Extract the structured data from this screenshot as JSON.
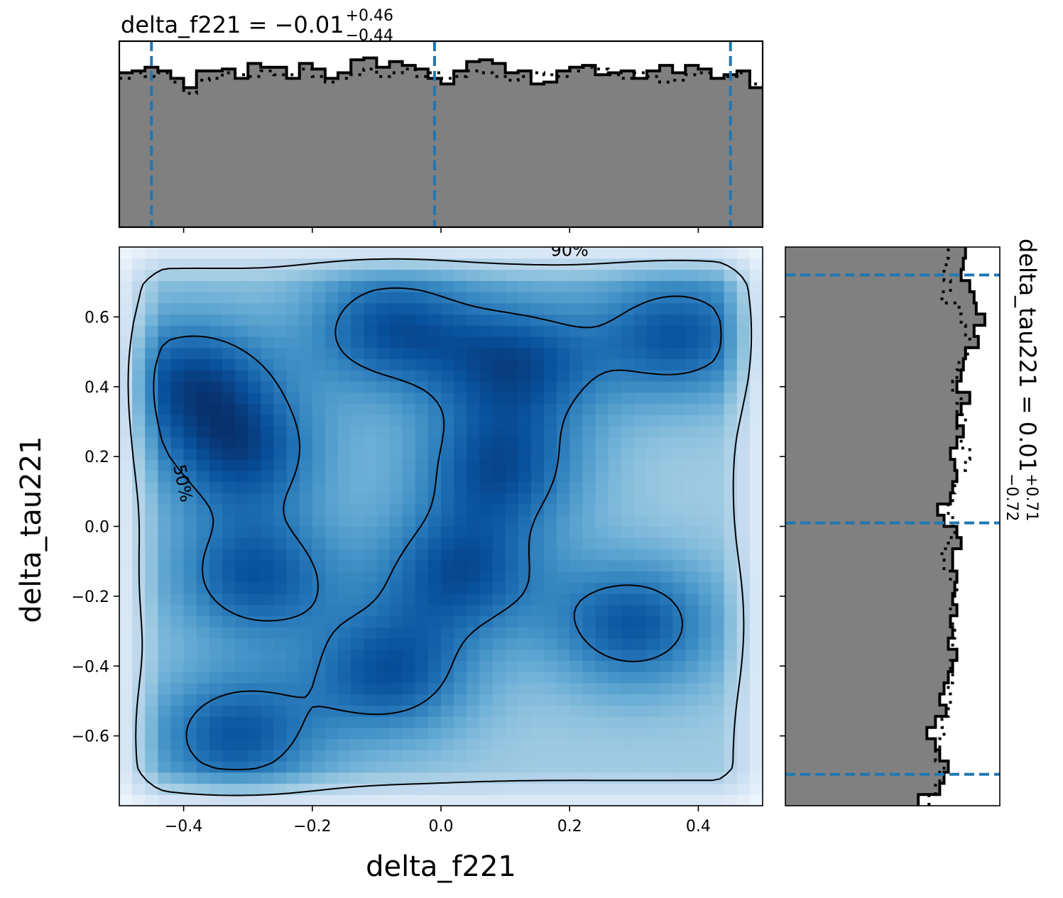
{
  "chart_data": [
    {
      "type": "heatmap",
      "panel": "joint",
      "xlabel": "delta_f221",
      "ylabel": "delta_tau221",
      "xlim": [
        -0.5,
        0.5
      ],
      "ylim": [
        -0.8,
        0.8
      ],
      "xticks": [
        -0.4,
        -0.2,
        0.0,
        0.2,
        0.4
      ],
      "xtick_labels": [
        "−0.4",
        "−0.2",
        "0.0",
        "0.2",
        "0.4"
      ],
      "yticks": [
        -0.6,
        -0.4,
        -0.2,
        0.0,
        0.2,
        0.4,
        0.6
      ],
      "ytick_labels": [
        "−0.6",
        "−0.4",
        "−0.2",
        "0.0",
        "0.2",
        "0.4",
        "0.6"
      ],
      "colormap": "Blues",
      "density_peaks": [
        {
          "x": -0.29,
          "y": -0.14
        },
        {
          "x": -0.08,
          "y": 0.57
        },
        {
          "x": 0.12,
          "y": 0.47
        },
        {
          "x": 0.09,
          "y": 0.17
        },
        {
          "x": -0.39,
          "y": 0.43
        },
        {
          "x": -0.31,
          "y": 0.21
        },
        {
          "x": -0.32,
          "y": -0.6
        },
        {
          "x": -0.08,
          "y": -0.42
        },
        {
          "x": 0.37,
          "y": 0.55
        },
        {
          "x": 0.3,
          "y": -0.28
        },
        {
          "x": 0.03,
          "y": -0.13
        }
      ],
      "contours": [
        {
          "level": "50%",
          "label": "50%"
        },
        {
          "level": "90%",
          "label": "90%"
        }
      ]
    },
    {
      "type": "bar",
      "panel": "marginal-x",
      "title_param": "delta_f221",
      "median": -0.01,
      "plus": 0.46,
      "minus": 0.44,
      "quantile_lines": [
        -0.45,
        -0.01,
        0.45
      ],
      "xlim": [
        -0.5,
        0.5
      ],
      "bins": 50,
      "hist_solid": [
        0.83,
        0.84,
        0.86,
        0.84,
        0.8,
        0.75,
        0.84,
        0.84,
        0.85,
        0.8,
        0.88,
        0.86,
        0.86,
        0.8,
        0.88,
        0.85,
        0.8,
        0.83,
        0.9,
        0.91,
        0.86,
        0.89,
        0.87,
        0.85,
        0.8,
        0.77,
        0.84,
        0.89,
        0.9,
        0.88,
        0.83,
        0.84,
        0.77,
        0.78,
        0.84,
        0.86,
        0.87,
        0.82,
        0.83,
        0.84,
        0.8,
        0.84,
        0.87,
        0.83,
        0.87,
        0.85,
        0.8,
        0.82,
        0.84,
        0.75
      ],
      "hist_dotted": [
        0.8,
        0.83,
        0.81,
        0.83,
        0.78,
        0.72,
        0.79,
        0.8,
        0.83,
        0.82,
        0.81,
        0.84,
        0.82,
        0.82,
        0.85,
        0.81,
        0.78,
        0.8,
        0.82,
        0.85,
        0.81,
        0.83,
        0.85,
        0.81,
        0.83,
        0.8,
        0.81,
        0.84,
        0.83,
        0.81,
        0.79,
        0.81,
        0.83,
        0.82,
        0.81,
        0.84,
        0.86,
        0.85,
        0.82,
        0.8,
        0.83,
        0.81,
        0.78,
        0.79,
        0.82,
        0.83,
        0.8,
        0.81,
        0.83,
        0.77
      ]
    },
    {
      "type": "bar",
      "panel": "marginal-y",
      "title_param": "delta_tau221",
      "median": 0.01,
      "plus": 0.71,
      "minus": 0.72,
      "quantile_lines": [
        -0.71,
        0.01,
        0.72
      ],
      "ylim": [
        -0.8,
        0.8
      ],
      "bins": 50,
      "hist_solid": [
        0.62,
        0.72,
        0.74,
        0.76,
        0.72,
        0.7,
        0.66,
        0.7,
        0.75,
        0.72,
        0.74,
        0.76,
        0.78,
        0.8,
        0.76,
        0.78,
        0.77,
        0.8,
        0.78,
        0.79,
        0.8,
        0.78,
        0.78,
        0.82,
        0.8,
        0.74,
        0.71,
        0.77,
        0.78,
        0.8,
        0.79,
        0.77,
        0.8,
        0.83,
        0.8,
        0.82,
        0.86,
        0.8,
        0.82,
        0.83,
        0.84,
        0.9,
        0.88,
        0.93,
        0.89,
        0.88,
        0.86,
        0.82,
        0.83,
        0.84
      ],
      "hist_dotted": [
        0.67,
        0.7,
        0.72,
        0.74,
        0.7,
        0.72,
        0.74,
        0.73,
        0.76,
        0.77,
        0.76,
        0.78,
        0.77,
        0.8,
        0.78,
        0.79,
        0.78,
        0.77,
        0.79,
        0.8,
        0.77,
        0.74,
        0.73,
        0.76,
        0.79,
        0.78,
        0.76,
        0.78,
        0.79,
        0.8,
        0.84,
        0.86,
        0.82,
        0.8,
        0.84,
        0.8,
        0.82,
        0.78,
        0.8,
        0.81,
        0.85,
        0.86,
        0.84,
        0.82,
        0.81,
        0.73,
        0.77,
        0.74,
        0.75,
        0.76
      ]
    }
  ],
  "colors": {
    "quantile_line": "#1f77b4",
    "hist_fill": "#808080",
    "hist_edge": "#000000"
  }
}
